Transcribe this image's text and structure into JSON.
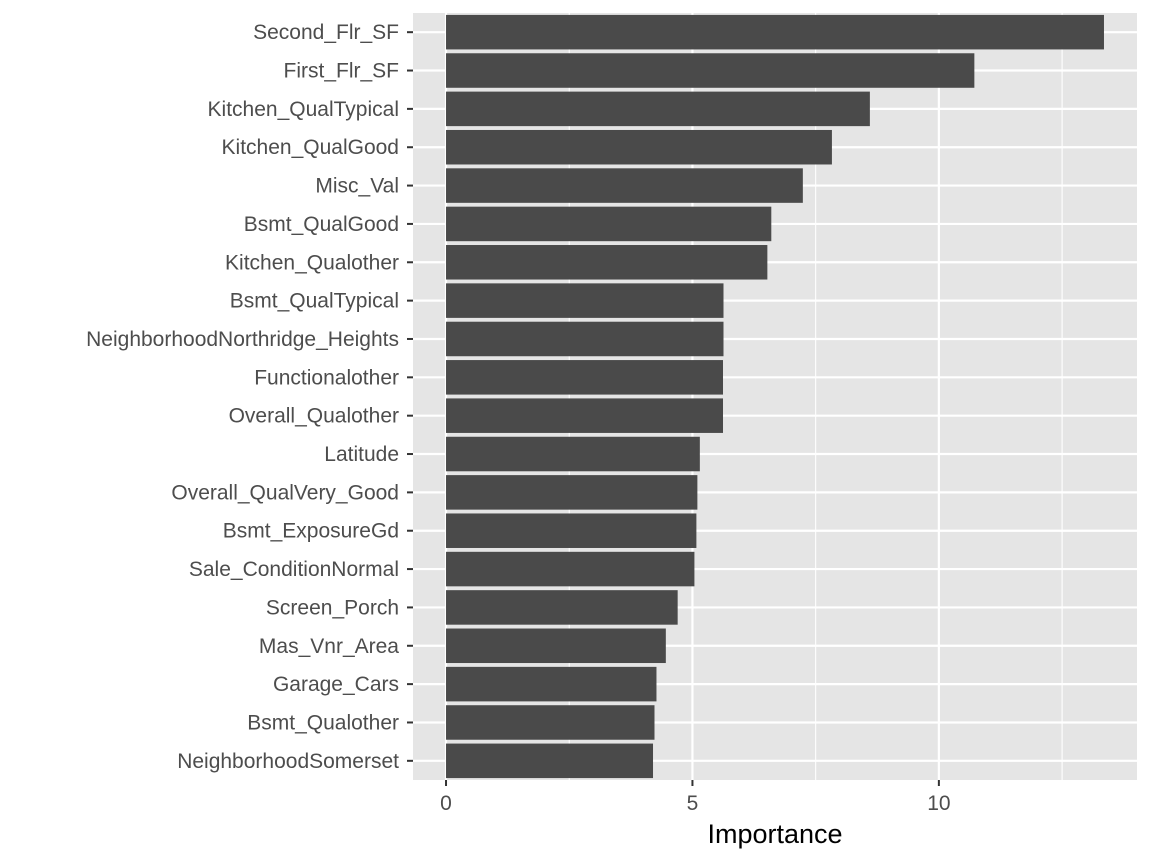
{
  "chart_data": {
    "type": "bar",
    "orientation": "horizontal",
    "title": "",
    "xlabel": "Importance",
    "ylabel": "",
    "categories": [
      "Second_Flr_SF",
      "First_Flr_SF",
      "Kitchen_QualTypical",
      "Kitchen_QualGood",
      "Misc_Val",
      "Bsmt_QualGood",
      "Kitchen_Qualother",
      "Bsmt_QualTypical",
      "NeighborhoodNorthridge_Heights",
      "Functionalother",
      "Overall_Qualother",
      "Latitude",
      "Overall_QualVery_Good",
      "Bsmt_ExposureGd",
      "Sale_ConditionNormal",
      "Screen_Porch",
      "Mas_Vnr_Area",
      "Garage_Cars",
      "Bsmt_Qualother",
      "NeighborhoodSomerset"
    ],
    "values": [
      13.35,
      10.72,
      8.6,
      7.83,
      7.24,
      6.6,
      6.52,
      5.63,
      5.63,
      5.62,
      5.62,
      5.15,
      5.1,
      5.08,
      5.04,
      4.7,
      4.46,
      4.27,
      4.23,
      4.2
    ],
    "xlim": [
      -0.67,
      14.02
    ],
    "xticks": [
      0,
      5,
      10
    ],
    "xtick_labels": [
      "0",
      "5",
      "10"
    ],
    "grid": true,
    "legend": "none",
    "colors": {
      "bar": "#4a4a4a",
      "panel": "#e5e5e5",
      "grid": "#ffffff",
      "tick_text": "#4d4d4d",
      "title_text": "#000000"
    }
  }
}
